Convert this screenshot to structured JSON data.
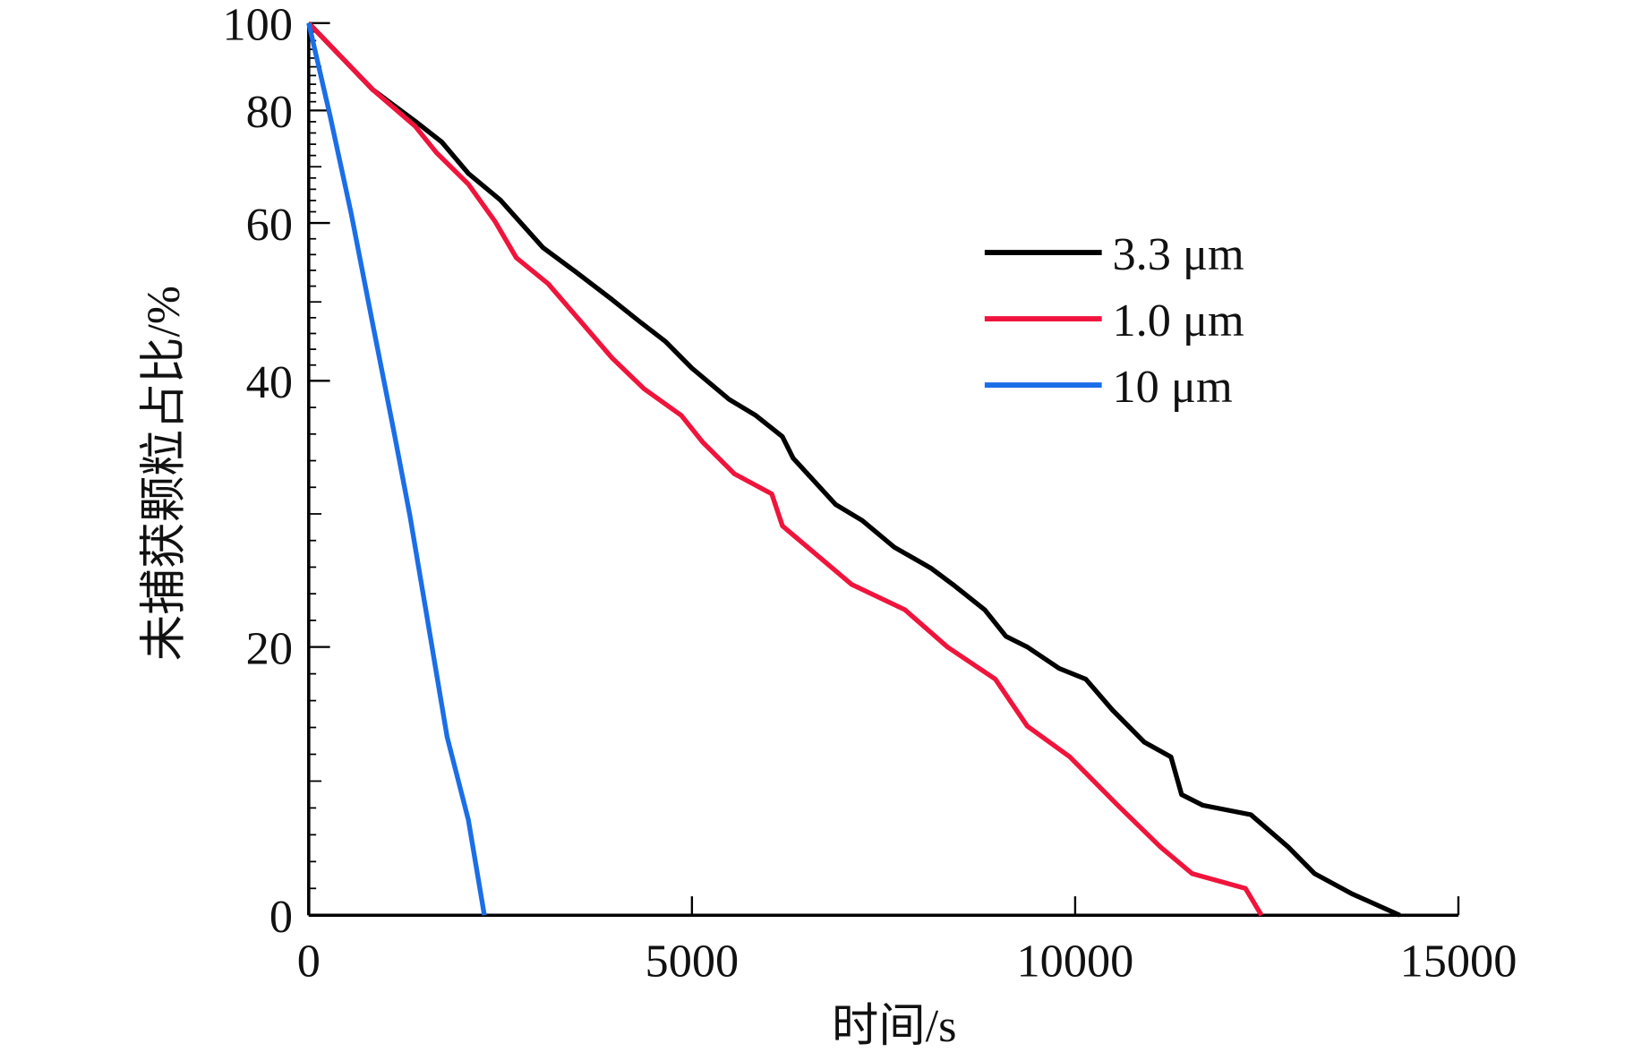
{
  "chart_data": {
    "type": "line",
    "title": "",
    "xlabel": "时间/s",
    "ylabel": "未捕获颗粒占比/%",
    "xlim": [
      0,
      15000
    ],
    "ylim": [
      0,
      100
    ],
    "xticks": [
      0,
      5000,
      10000,
      15000
    ],
    "xtick_labels": [
      "0",
      "5000",
      "10000",
      "15000"
    ],
    "yticks": [
      0,
      20,
      40,
      60,
      80,
      100
    ],
    "ytick_labels": [
      "0",
      "20",
      "40",
      "60",
      "80",
      "100"
    ],
    "y_scale": "nonlinear (compressed toward top)",
    "grid": false,
    "legend_position": "upper-right-center",
    "series": [
      {
        "name": "3.3 μm",
        "color": "#000000",
        "x": [
          0,
          833,
          1389,
          1736,
          2083,
          2500,
          3056,
          3472,
          3958,
          4306,
          4653,
          5000,
          5486,
          5833,
          6181,
          6319,
          6875,
          7222,
          7639,
          8125,
          8403,
          8819,
          9097,
          9375,
          9792,
          10139,
          10486,
          10903,
          11250,
          11389,
          11667,
          12292,
          12778,
          13125,
          13611,
          14236
        ],
        "y": [
          100,
          84.8,
          78.1,
          74.4,
          68.8,
          64.1,
          56.9,
          53.9,
          50.3,
          47.6,
          45.0,
          41.6,
          38.6,
          37.4,
          35.8,
          34.2,
          30.7,
          29.5,
          27.5,
          25.9,
          24.7,
          22.8,
          20.8,
          20.0,
          18.4,
          17.6,
          15.3,
          12.9,
          11.8,
          9.0,
          8.2,
          7.5,
          5.1,
          3.1,
          1.6,
          0
        ]
      },
      {
        "name": "1.0 μm",
        "color": "#f0143c",
        "x": [
          0,
          833,
          1389,
          1667,
          2083,
          2431,
          2708,
          3125,
          3542,
          3958,
          4375,
          4861,
          5139,
          5556,
          6042,
          6181,
          7083,
          7778,
          8333,
          8958,
          9375,
          9931,
          10556,
          11111,
          11528,
          12222,
          12431
        ],
        "y": [
          100,
          84.8,
          77.2,
          72.5,
          66.9,
          60.3,
          55.6,
          52.3,
          47.6,
          42.9,
          39.4,
          37.4,
          35.4,
          33.0,
          31.5,
          29.1,
          24.7,
          22.8,
          20.0,
          17.6,
          14.1,
          11.8,
          8.2,
          5.1,
          3.1,
          2.0,
          0
        ]
      },
      {
        "name": "10 μm",
        "color": "#1a6ee8",
        "x": [
          0,
          278,
          556,
          833,
          1111,
          1319,
          1528,
          1806,
          2083,
          2292
        ],
        "y": [
          100,
          79.1,
          61.6,
          47.3,
          36.2,
          29.9,
          22.8,
          13.3,
          7.1,
          0
        ]
      }
    ]
  }
}
